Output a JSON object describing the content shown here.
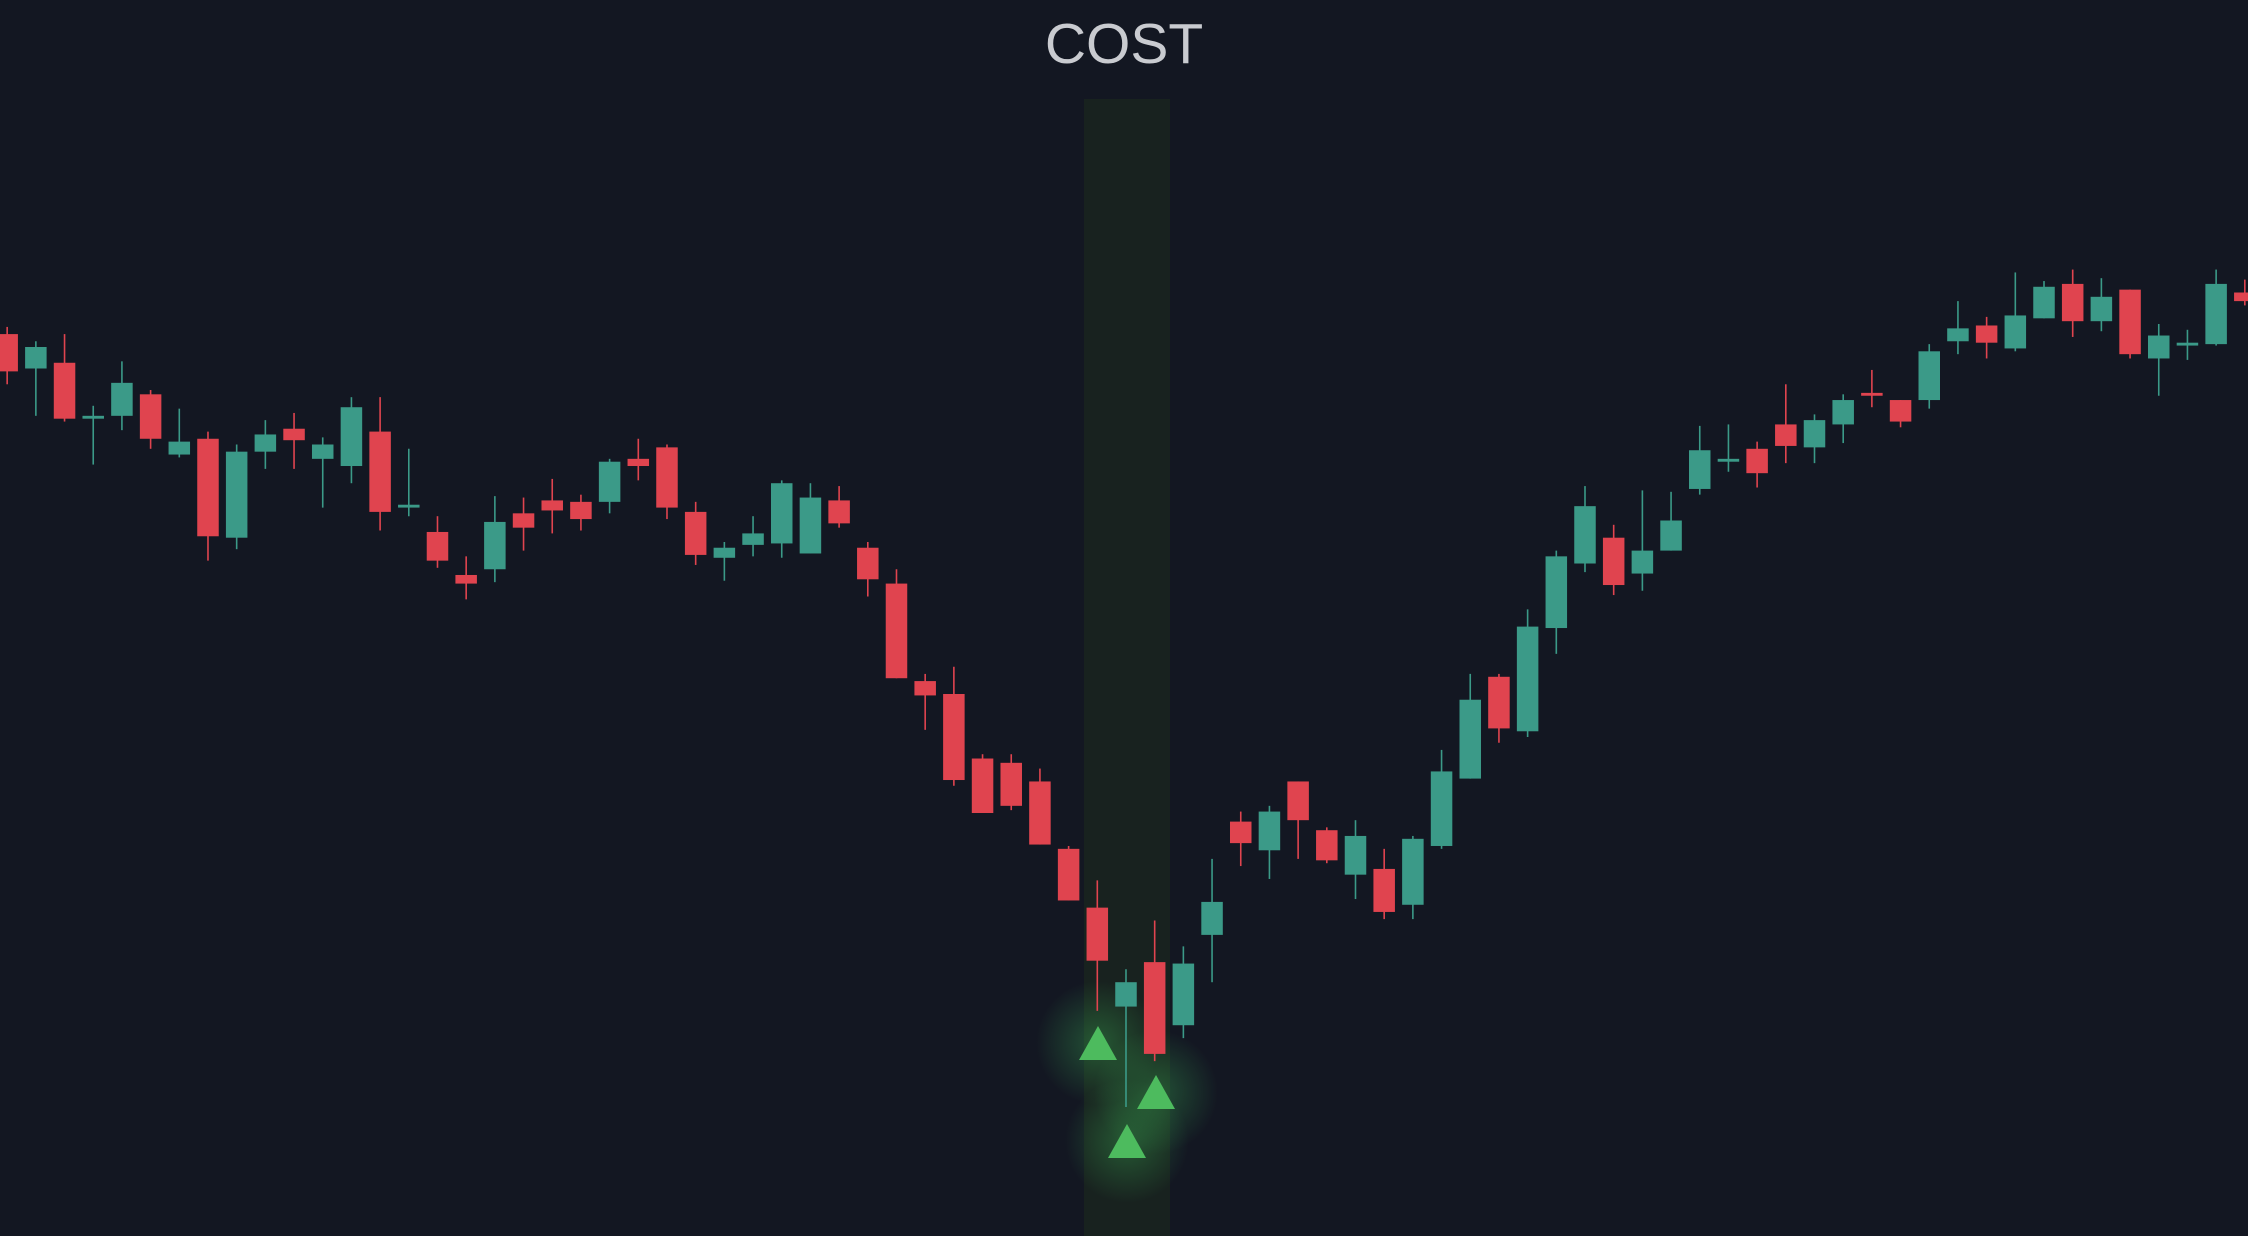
{
  "chart_data": {
    "type": "candlestick",
    "title": "COST",
    "ylim": [
      0,
      862
    ],
    "up_color": "#3b9a88",
    "down_color": "#e0444f",
    "open": [
      629,
      605,
      609,
      570,
      572,
      587,
      545,
      556,
      487,
      547,
      563,
      542,
      537,
      561,
      508,
      491,
      461,
      465,
      504,
      513,
      512,
      512,
      542,
      550,
      505,
      473,
      482,
      483,
      476,
      513,
      480,
      455,
      387,
      378,
      333,
      330,
      317,
      270,
      229,
      160,
      191,
      147,
      210,
      289,
      269,
      317,
      283,
      252,
      256,
      231,
      272,
      319,
      390,
      352,
      424,
      469,
      487,
      462,
      478,
      521,
      540,
      549,
      566,
      550,
      566,
      588,
      583,
      583,
      624,
      635,
      619,
      640,
      664,
      638,
      660,
      612,
      621,
      622,
      658
    ],
    "high": [
      634,
      624,
      629,
      579,
      610,
      590,
      577,
      561,
      552,
      569,
      574,
      557,
      585,
      585,
      549,
      502,
      474,
      516,
      515,
      528,
      517,
      542,
      556,
      552,
      512,
      484,
      502,
      527,
      525,
      523,
      484,
      465,
      392,
      397,
      336,
      336,
      326,
      272,
      248,
      186,
      220,
      202,
      263,
      296,
      300,
      317,
      285,
      290,
      270,
      279,
      339,
      392,
      392,
      437,
      478,
      523,
      496,
      520,
      519,
      565,
      566,
      554,
      594,
      573,
      587,
      604,
      583,
      622,
      652,
      641,
      672,
      666,
      674,
      668,
      660,
      636,
      632,
      674,
      667
    ],
    "low": [
      594,
      572,
      568,
      538,
      562,
      549,
      543,
      471,
      479,
      535,
      535,
      508,
      525,
      492,
      502,
      466,
      444,
      456,
      478,
      490,
      492,
      504,
      527,
      500,
      468,
      457,
      474,
      473,
      476,
      494,
      446,
      389,
      353,
      314,
      295,
      297,
      273,
      234,
      157,
      90,
      122,
      138,
      177,
      258,
      249,
      263,
      260,
      235,
      221,
      221,
      270,
      319,
      344,
      348,
      406,
      463,
      447,
      450,
      478,
      517,
      533,
      522,
      539,
      539,
      553,
      578,
      564,
      577,
      615,
      612,
      617,
      640,
      627,
      631,
      612,
      586,
      611,
      621,
      649
    ],
    "close": [
      603,
      620,
      570,
      572,
      595,
      556,
      554,
      488,
      547,
      559,
      555,
      552,
      578,
      505,
      510,
      471,
      455,
      498,
      494,
      506,
      500,
      540,
      537,
      508,
      475,
      480,
      490,
      525,
      515,
      497,
      458,
      389,
      377,
      318,
      295,
      300,
      273,
      234,
      192,
      177,
      127,
      190,
      233,
      274,
      296,
      290,
      262,
      279,
      226,
      277,
      324,
      374,
      354,
      425,
      474,
      509,
      454,
      478,
      499,
      548,
      542,
      532,
      551,
      569,
      583,
      586,
      568,
      617,
      633,
      623,
      642,
      662,
      638,
      655,
      615,
      628,
      623,
      664,
      652
    ]
  }
}
